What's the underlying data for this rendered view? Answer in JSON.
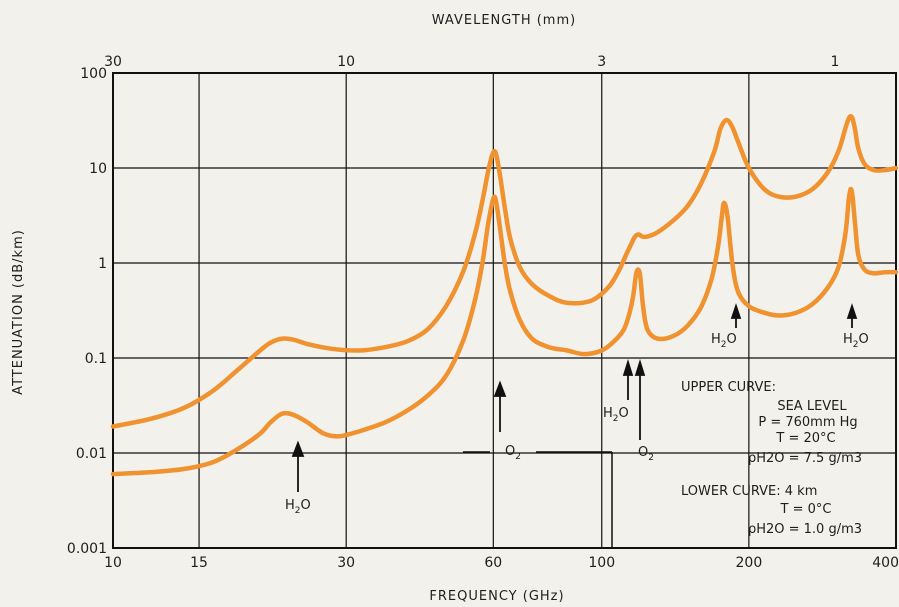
{
  "chart_data": {
    "type": "line",
    "xscale": "log",
    "yscale": "log",
    "xlim": [
      10,
      400
    ],
    "ylim": [
      0.001,
      100
    ],
    "grid": true,
    "xlabel": "FREQUENCY (GHz)",
    "ylabel": "ATTENUATION (dB/km)",
    "top_axis_label": "WAVELENGTH (mm)",
    "x_ticks": [
      {
        "value": 10,
        "label": "10"
      },
      {
        "value": 15,
        "label": "15"
      },
      {
        "value": 30,
        "label": "30"
      },
      {
        "value": 60,
        "label": "60"
      },
      {
        "value": 100,
        "label": "100"
      },
      {
        "value": 200,
        "label": "200"
      },
      {
        "value": 400,
        "label": "400"
      }
    ],
    "y_ticks": [
      {
        "value": 100,
        "label": "100"
      },
      {
        "value": 10,
        "label": "10"
      },
      {
        "value": 1,
        "label": "1"
      },
      {
        "value": 0.1,
        "label": "0.1"
      },
      {
        "value": 0.01,
        "label": "0.01"
      },
      {
        "value": 0.001,
        "label": "0.001"
      }
    ],
    "top_ticks": [
      {
        "value": 30,
        "label": "30"
      },
      {
        "value": 10,
        "label": "10"
      },
      {
        "value": 3,
        "label": "3"
      },
      {
        "value": 1,
        "label": "1"
      }
    ],
    "series": [
      {
        "color": "#f0922f",
        "x": [
          10,
          12,
          14,
          16,
          18,
          20,
          21,
          22.2,
          23.5,
          25,
          28,
          32,
          36,
          40,
          44,
          48,
          52,
          55,
          57,
          58.5,
          59.5,
          60.3,
          61,
          62,
          63.5,
          65,
          68,
          72,
          78,
          85,
          95,
          103,
          108,
          112,
          115,
          117,
          119,
          121,
          124,
          130,
          140,
          150,
          160,
          170,
          175,
          180,
          185,
          190,
          200,
          215,
          230,
          250,
          270,
          290,
          305,
          315,
          320,
          323,
          326,
          330,
          335,
          345,
          360,
          380,
          400
        ],
        "y": [
          0.019,
          0.023,
          0.03,
          0.045,
          0.075,
          0.12,
          0.145,
          0.16,
          0.155,
          0.14,
          0.125,
          0.12,
          0.13,
          0.15,
          0.2,
          0.35,
          0.8,
          2,
          4.5,
          9,
          13,
          15,
          13,
          8,
          3.5,
          1.8,
          0.9,
          0.6,
          0.45,
          0.38,
          0.4,
          0.55,
          0.8,
          1.2,
          1.6,
          1.9,
          2,
          1.9,
          1.9,
          2.1,
          2.8,
          4,
          7,
          15,
          26,
          32,
          27,
          19,
          10,
          6,
          5,
          5,
          6,
          9,
          15,
          26,
          33,
          35,
          33,
          25,
          16,
          11,
          9.5,
          9.5,
          10
        ]
      },
      {
        "color": "#f0922f",
        "x": [
          10,
          12,
          14,
          16,
          18,
          20,
          21,
          22.2,
          23.5,
          25,
          27,
          29,
          32,
          36,
          40,
          44,
          48,
          52,
          55,
          57,
          58.5,
          59.5,
          60.3,
          61,
          62,
          63.5,
          65,
          68,
          72,
          78,
          85,
          92,
          100,
          106,
          111,
          114,
          116,
          117.5,
          118.8,
          120,
          121.5,
          124,
          130,
          140,
          150,
          160,
          168,
          173,
          176,
          178,
          181,
          185,
          190,
          200,
          215,
          230,
          250,
          270,
          290,
          305,
          315,
          320,
          323,
          326,
          330,
          335,
          345,
          360,
          380,
          400
        ],
        "y": [
          0.006,
          0.0063,
          0.0068,
          0.008,
          0.011,
          0.016,
          0.021,
          0.026,
          0.025,
          0.021,
          0.016,
          0.015,
          0.017,
          0.021,
          0.028,
          0.04,
          0.065,
          0.15,
          0.4,
          1,
          2.5,
          4,
          5,
          4,
          2.2,
          0.9,
          0.5,
          0.25,
          0.16,
          0.13,
          0.12,
          0.11,
          0.12,
          0.15,
          0.2,
          0.3,
          0.45,
          0.75,
          0.85,
          0.7,
          0.35,
          0.2,
          0.16,
          0.17,
          0.22,
          0.35,
          0.7,
          1.5,
          3,
          4.3,
          3,
          1,
          0.5,
          0.35,
          0.3,
          0.28,
          0.3,
          0.37,
          0.55,
          0.9,
          2,
          4.5,
          6,
          5,
          2.5,
          1.2,
          0.85,
          0.78,
          0.8,
          0.8
        ]
      }
    ],
    "annotations": {
      "h2o_22": "H2O",
      "o2_60": "O2",
      "h2o_118": "H2O",
      "o2_118": "O2",
      "h2o_183": "H2O",
      "h2o_325": "H2O",
      "h2o_label": "H",
      "o_label": "O",
      "sub_2": "2",
      "upper_curve_title": "UPPER CURVE:",
      "upper_curve_l1": "SEA LEVEL",
      "upper_curve_l2": "P = 760mm Hg",
      "upper_curve_l3": "T = 20°C",
      "upper_curve_l4": "ρH2O = 7.5 g/m3",
      "lower_curve_title": "LOWER CURVE: 4 km",
      "lower_curve_l1": "T = 0°C",
      "lower_curve_l2": "ρH2O = 1.0 g/m3"
    }
  }
}
